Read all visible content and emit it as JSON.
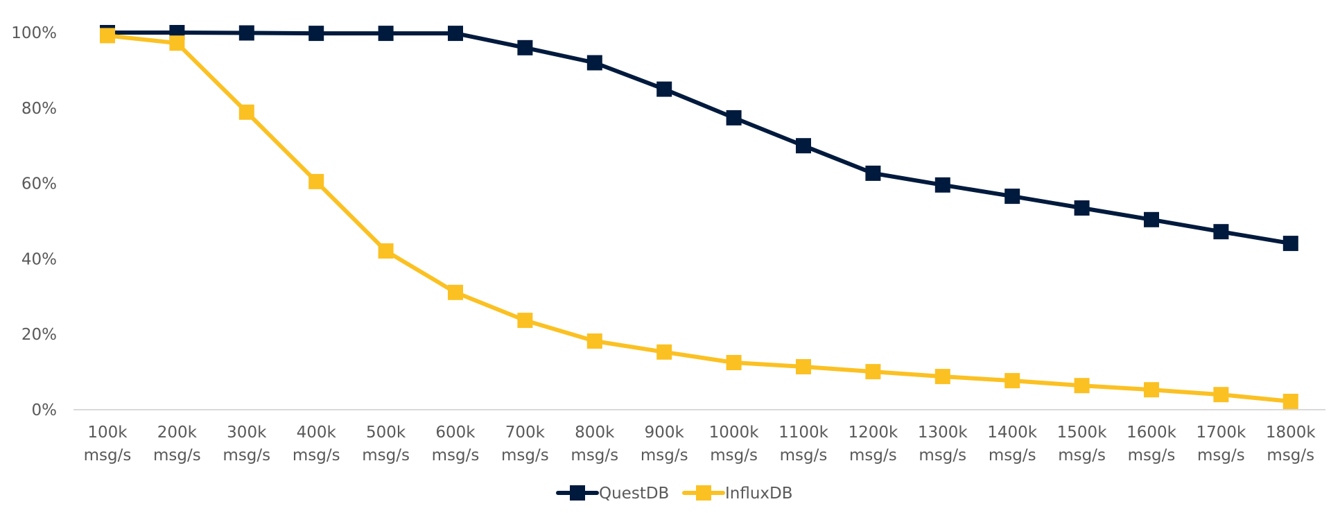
{
  "chart_data": {
    "type": "line",
    "title": "",
    "xlabel": "",
    "ylabel": "",
    "categories": [
      [
        "100k",
        "msg/s"
      ],
      [
        "200k",
        "msg/s"
      ],
      [
        "300k",
        "msg/s"
      ],
      [
        "400k",
        "msg/s"
      ],
      [
        "500k",
        "msg/s"
      ],
      [
        "600k",
        "msg/s"
      ],
      [
        "700k",
        "msg/s"
      ],
      [
        "800k",
        "msg/s"
      ],
      [
        "900k",
        "msg/s"
      ],
      [
        "1000k",
        "msg/s"
      ],
      [
        "1100k",
        "msg/s"
      ],
      [
        "1200k",
        "msg/s"
      ],
      [
        "1300k",
        "msg/s"
      ],
      [
        "1400k",
        "msg/s"
      ],
      [
        "1500k",
        "msg/s"
      ],
      [
        "1600k",
        "msg/s"
      ],
      [
        "1700k",
        "msg/s"
      ],
      [
        "1800k",
        "msg/s"
      ]
    ],
    "ylim": [
      0,
      100
    ],
    "yticks": [
      "0%",
      "20%",
      "40%",
      "60%",
      "80%",
      "100%"
    ],
    "ytick_values": [
      0,
      20,
      40,
      60,
      80,
      100
    ],
    "grid": false,
    "legend_position": "bottom",
    "series": [
      {
        "name": "QuestDB",
        "color": "#001a3d",
        "marker": "square",
        "values": [
          100,
          100,
          99.9,
          99.8,
          99.8,
          99.8,
          96,
          92,
          85,
          77.4,
          70,
          62.7,
          59.6,
          56.6,
          53.5,
          50.4,
          47.2,
          44.1
        ]
      },
      {
        "name": "InfluxDB",
        "color": "#fbc123",
        "marker": "square",
        "values": [
          99.2,
          97.2,
          78.9,
          60.5,
          42.1,
          31.1,
          23.7,
          18.2,
          15.3,
          12.5,
          11.4,
          10.1,
          8.8,
          7.7,
          6.4,
          5.3,
          4.0,
          2.2
        ]
      }
    ],
    "axis_color": "#d9d9d9",
    "text_color": "#595959"
  }
}
